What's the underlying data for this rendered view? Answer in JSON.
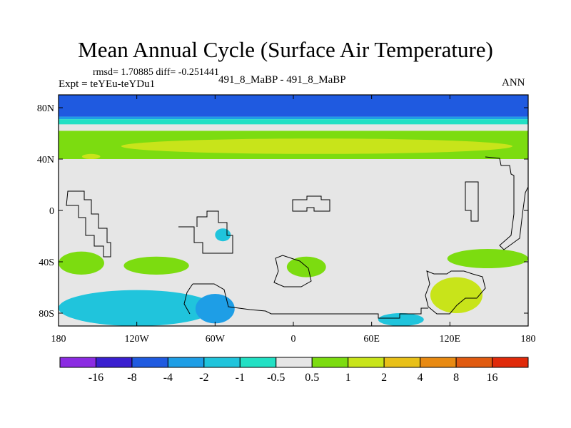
{
  "chart_data": {
    "type": "heatmap",
    "title": "Mean Annual Cycle (Surface Air Temperature)",
    "stats_text": "rmsd= 1.70885 diff= -0.251441",
    "experiment_text": "Expt = teYEu-teYDu1",
    "center_label": "491_8_MaBP - 491_8_MaBP",
    "season_label": "ANN",
    "x_range": [
      -180,
      180
    ],
    "y_range": [
      -90,
      90
    ],
    "x_ticks": [
      {
        "value": -180,
        "label": "180"
      },
      {
        "value": -120,
        "label": "120W"
      },
      {
        "value": -60,
        "label": "60W"
      },
      {
        "value": 0,
        "label": "0"
      },
      {
        "value": 60,
        "label": "60E"
      },
      {
        "value": 120,
        "label": "120E"
      },
      {
        "value": 180,
        "label": "180"
      }
    ],
    "y_ticks": [
      {
        "value": 80,
        "label": "80N"
      },
      {
        "value": 40,
        "label": "40N"
      },
      {
        "value": 0,
        "label": "0"
      },
      {
        "value": -40,
        "label": "40S"
      },
      {
        "value": -80,
        "label": "80S"
      }
    ],
    "colorbar": {
      "levels": [
        -16,
        -8,
        -4,
        -2,
        -1,
        -0.5,
        0.5,
        1,
        2,
        4,
        8,
        16
      ],
      "level_labels": [
        "-16",
        "-8",
        "-4",
        "-2",
        "-1",
        "-0.5",
        "0.5",
        "1",
        "2",
        "4",
        "8",
        "16"
      ],
      "colors": [
        "#8b2be2",
        "#3a1fd0",
        "#1f5ae0",
        "#1e9ee6",
        "#20c4dc",
        "#22e0c4",
        "#e6e6e6",
        "#7cdc10",
        "#c8e41a",
        "#e8c018",
        "#e88a12",
        "#e05a10",
        "#e02a0a"
      ]
    },
    "bands": [
      {
        "lat_from": 90,
        "lat_to": 80,
        "value": -8
      },
      {
        "lat_from": 80,
        "lat_to": 73,
        "value": -6
      },
      {
        "lat_from": 73,
        "lat_to": 71,
        "value": -3
      },
      {
        "lat_from": 71,
        "lat_to": 67,
        "value": -0.7
      },
      {
        "lat_from": 67,
        "lat_to": 62,
        "value": 0
      },
      {
        "lat_from": 62,
        "lat_to": 40,
        "value": 0.7
      }
    ],
    "regions": [
      {
        "name": "NH midlatitude warm belt",
        "value": 1.5,
        "lon": [
          -132,
          168
        ],
        "lat": [
          44,
          56
        ]
      },
      {
        "name": "North Pacific warm spot",
        "value": 1.5,
        "lon": [
          -162,
          -148
        ],
        "lat": [
          40,
          44
        ]
      },
      {
        "name": "Western South Pacific warm",
        "value": 0.8,
        "lon": [
          -180,
          -145
        ],
        "lat": [
          -50,
          -32
        ]
      },
      {
        "name": "Southern Ocean warm",
        "value": 0.8,
        "lon": [
          -130,
          -80
        ],
        "lat": [
          -50,
          -36
        ]
      },
      {
        "name": "South Atlantic warm patch",
        "value": 0.8,
        "lon": [
          -5,
          25
        ],
        "lat": [
          -52,
          -36
        ]
      },
      {
        "name": "East Indian warm patch",
        "value": 0.8,
        "lon": [
          118,
          180
        ],
        "lat": [
          -45,
          -30
        ]
      },
      {
        "name": "Australian sector warm",
        "value": 1.5,
        "lon": [
          105,
          145
        ],
        "lat": [
          -80,
          -52
        ]
      },
      {
        "name": "Antarctic coastal cooling",
        "value": -1.5,
        "lon": [
          -180,
          -60
        ],
        "lat": [
          -90,
          -62
        ]
      },
      {
        "name": "Weddell cooling core",
        "value": -3,
        "lon": [
          -75,
          -45
        ],
        "lat": [
          -88,
          -65
        ]
      },
      {
        "name": "South American cooling",
        "value": -1.5,
        "lon": [
          -60,
          -48
        ],
        "lat": [
          -24,
          -14
        ]
      },
      {
        "name": "Indian sector cooling",
        "value": -1.5,
        "lon": [
          65,
          100
        ],
        "lat": [
          -90,
          -80
        ]
      }
    ]
  }
}
